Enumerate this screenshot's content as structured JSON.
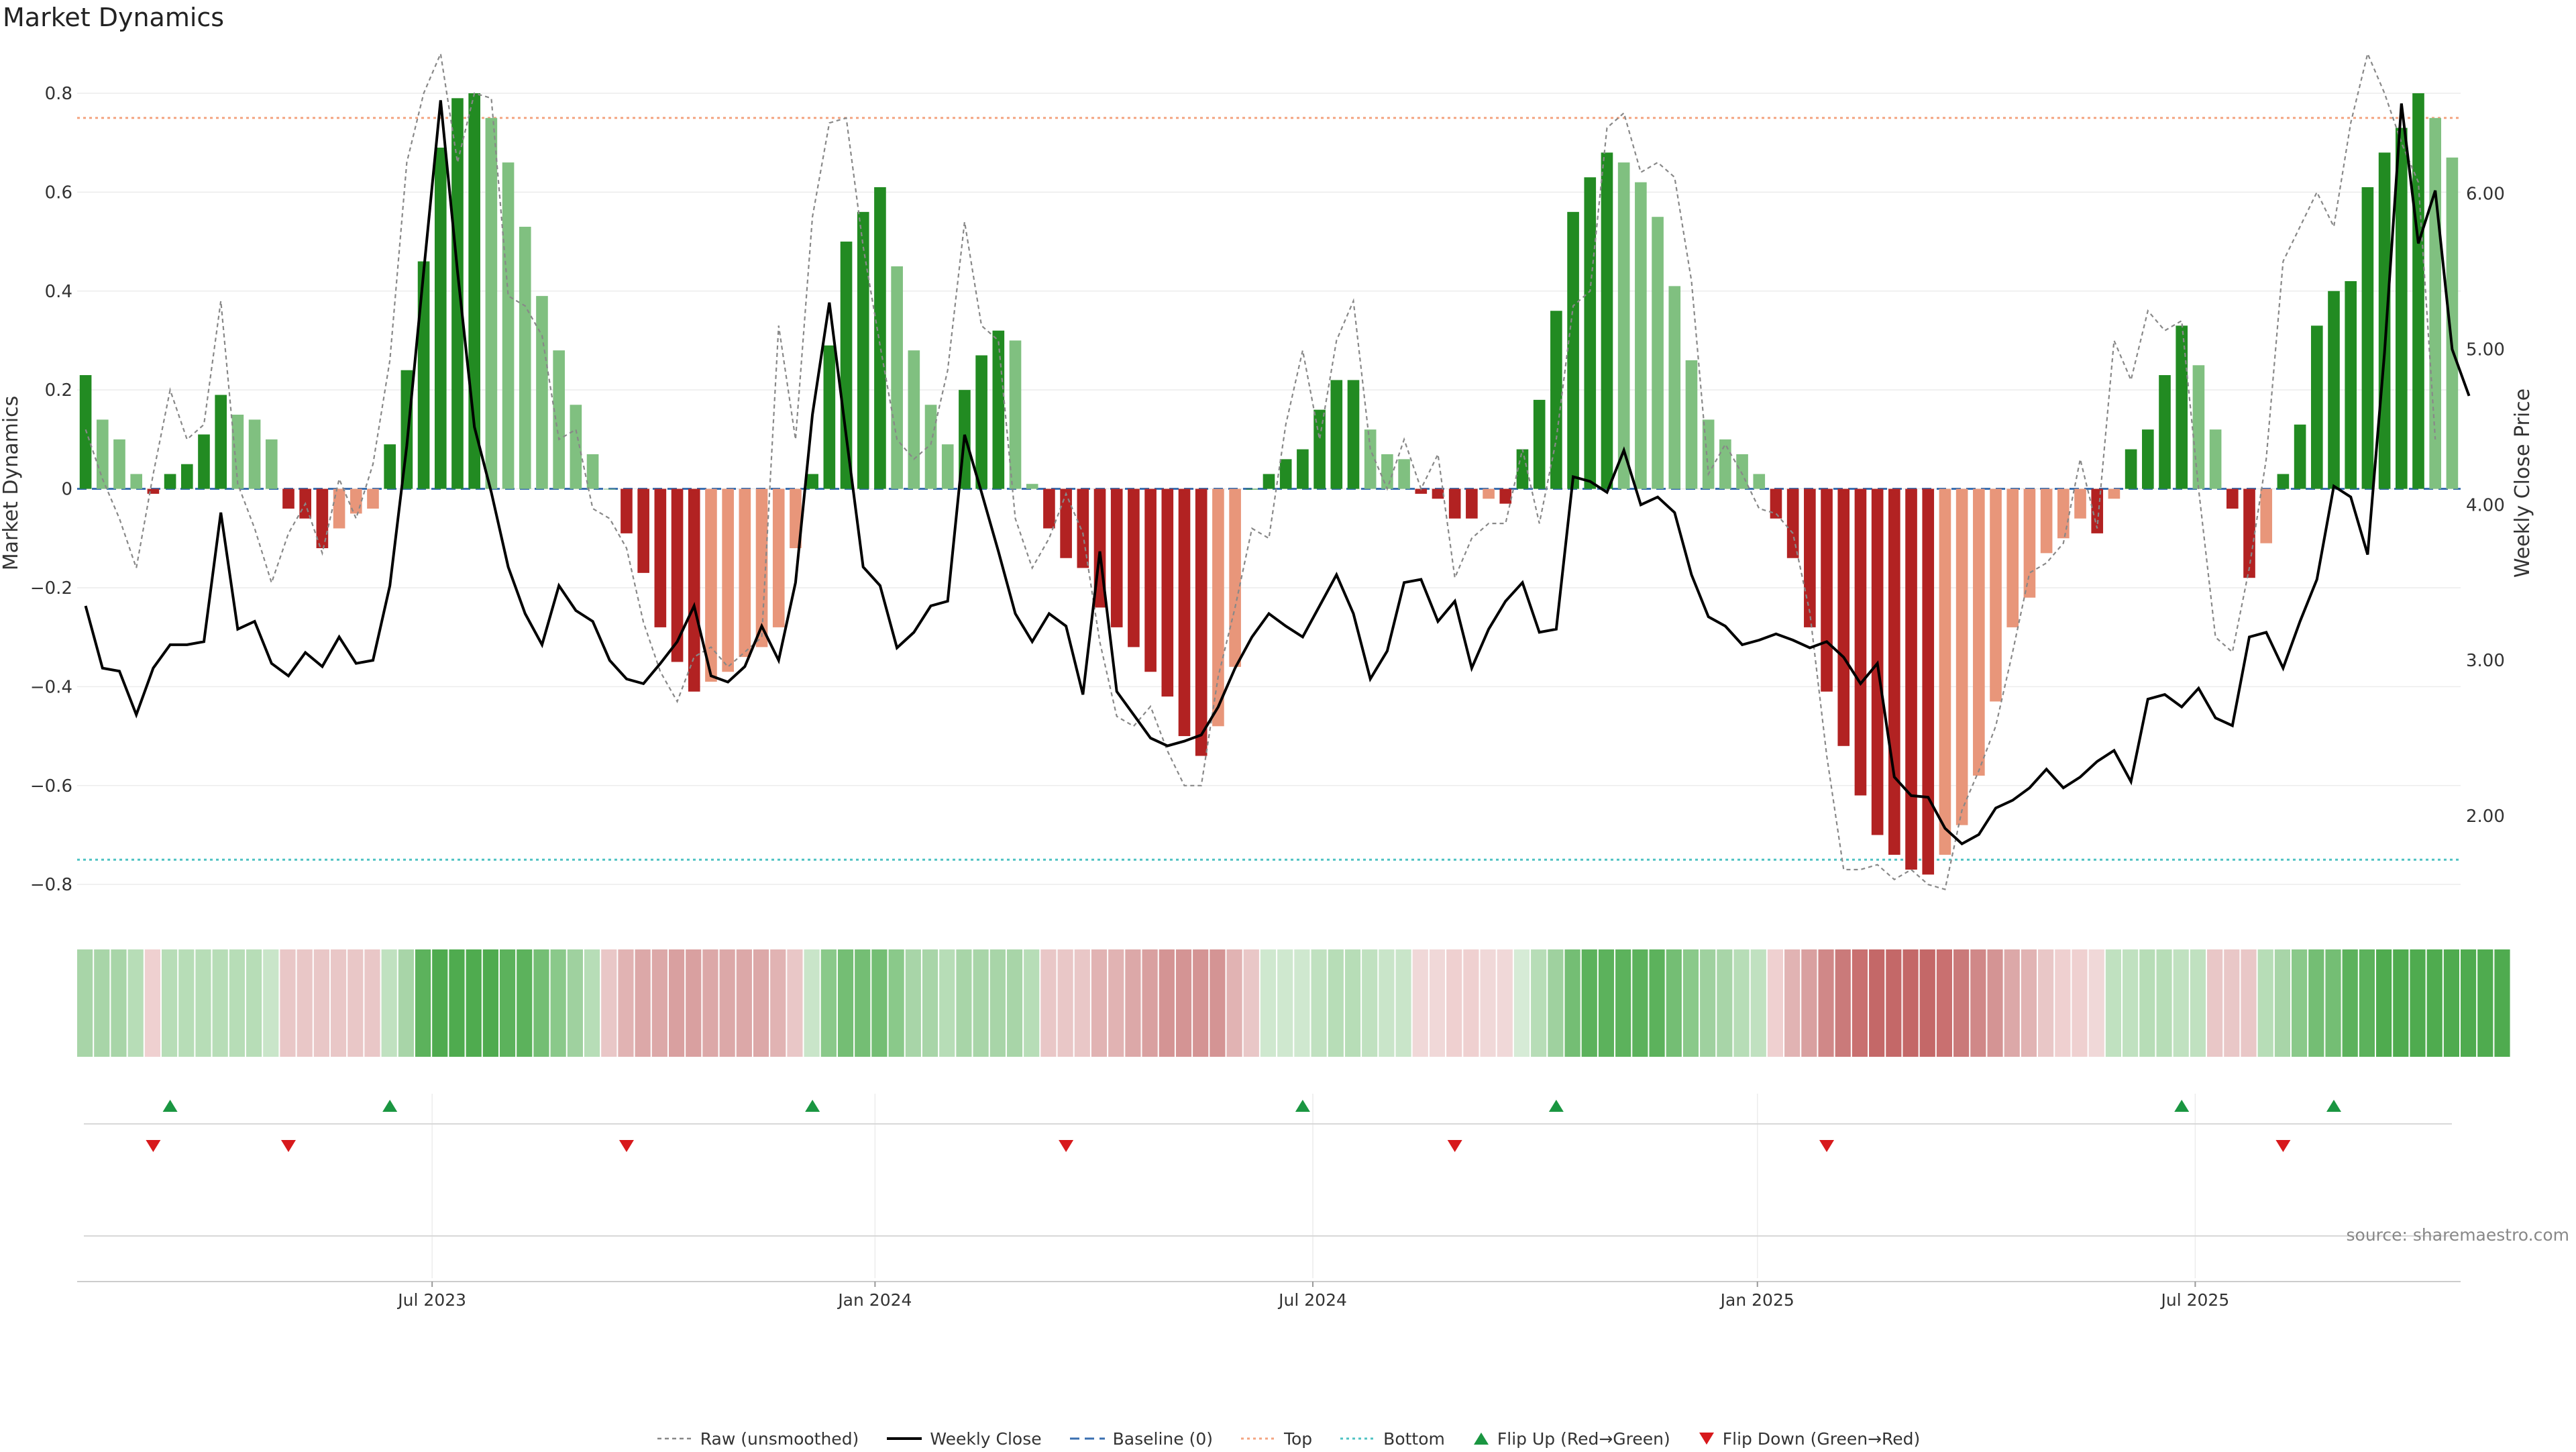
{
  "chart_data": {
    "type": "bar",
    "title": "Market Dynamics",
    "ylabel": "Market Dynamics",
    "y2label": "Weekly Close Price",
    "ylim": [
      -0.85,
      0.88
    ],
    "y2lim": [
      1.4,
      6.9
    ],
    "yticks": [
      0.8,
      0.6,
      0.4,
      0.2,
      0,
      -0.2,
      -0.4,
      -0.6,
      -0.8
    ],
    "ytick_labels": [
      "0.8",
      "0.6",
      "0.4",
      "0.2",
      "0",
      "−0.2",
      "−0.4",
      "−0.6",
      "−0.8"
    ],
    "y2ticks": [
      6.0,
      5.0,
      4.0,
      3.0,
      2.0
    ],
    "y2tick_labels": [
      "6.00",
      "5.00",
      "4.00",
      "3.00",
      "2.00"
    ],
    "x_ticks": [
      {
        "index": 20.5,
        "label": "Jul 2023"
      },
      {
        "index": 46.7,
        "label": "Jan 2024"
      },
      {
        "index": 72.6,
        "label": "Jul 2024"
      },
      {
        "index": 98.9,
        "label": "Jan 2025"
      },
      {
        "index": 124.8,
        "label": "Jul 2025"
      }
    ],
    "top_level": 0.75,
    "bottom_level": -0.75,
    "grid": true,
    "legend_position": "bottom-center",
    "colors": {
      "strong_up": "#228b22",
      "weak_up": "#80c080",
      "strong_down": "#b22222",
      "weak_down": "#e8967a",
      "close": "#000000",
      "raw": "#888888",
      "baseline": "#3a6fb0",
      "top": "#f4a582",
      "bottom": "#4fc3c3",
      "flip_up": "#1a9641",
      "flip_down": "#d7191c"
    },
    "series": [
      {
        "name": "Market Dynamics",
        "values": [
          0.23,
          0.14,
          0.1,
          0.03,
          -0.01,
          0.03,
          0.05,
          0.11,
          0.19,
          0.15,
          0.14,
          0.1,
          -0.04,
          -0.06,
          -0.12,
          -0.08,
          -0.05,
          -0.04,
          0.09,
          0.24,
          0.46,
          0.69,
          0.79,
          0.8,
          0.75,
          0.66,
          0.53,
          0.39,
          0.28,
          0.17,
          0.07,
          0,
          -0.09,
          -0.17,
          -0.28,
          -0.35,
          -0.41,
          -0.39,
          -0.37,
          -0.34,
          -0.32,
          -0.28,
          -0.12,
          0.03,
          0.29,
          0.5,
          0.56,
          0.61,
          0.45,
          0.28,
          0.17,
          0.09,
          0.2,
          0.27,
          0.32,
          0.3,
          0.01,
          -0.08,
          -0.14,
          -0.16,
          -0.24,
          -0.28,
          -0.32,
          -0.37,
          -0.42,
          -0.5,
          -0.54,
          -0.48,
          -0.36,
          0,
          0.03,
          0.06,
          0.08,
          0.16,
          0.22,
          0.22,
          0.12,
          0.07,
          0.06,
          -0.01,
          -0.02,
          -0.06,
          -0.06,
          -0.02,
          -0.03,
          0.08,
          0.18,
          0.36,
          0.56,
          0.63,
          0.68,
          0.66,
          0.62,
          0.55,
          0.41,
          0.26,
          0.14,
          0.1,
          0.07,
          0.03,
          -0.06,
          -0.14,
          -0.28,
          -0.41,
          -0.52,
          -0.62,
          -0.7,
          -0.74,
          -0.77,
          -0.78,
          -0.74,
          -0.68,
          -0.58,
          -0.43,
          -0.28,
          -0.22,
          -0.13,
          -0.1,
          -0.06,
          -0.09,
          -0.02,
          0.08,
          0.12,
          0.23,
          0.33,
          0.25,
          0.12,
          -0.04,
          -0.18,
          -0.11,
          0.03,
          0.13,
          0.33,
          0.4,
          0.42,
          0.61,
          0.68,
          0.73,
          0.8,
          0.75,
          0.67
        ]
      },
      {
        "name": "Raw (unsmoothed)",
        "values": [
          0.12,
          0.02,
          -0.06,
          -0.16,
          0.03,
          0.2,
          0.1,
          0.13,
          0.38,
          0.01,
          -0.08,
          -0.19,
          -0.09,
          -0.03,
          -0.13,
          0.02,
          -0.06,
          0.05,
          0.26,
          0.66,
          0.8,
          0.88,
          0.66,
          0.8,
          0.79,
          0.39,
          0.37,
          0.31,
          0.1,
          0.12,
          -0.04,
          -0.06,
          -0.12,
          -0.27,
          -0.37,
          -0.43,
          -0.34,
          -0.32,
          -0.36,
          -0.33,
          -0.3,
          0.33,
          0.1,
          0.55,
          0.74,
          0.75,
          0.49,
          0.29,
          0.1,
          0.06,
          0.09,
          0.24,
          0.54,
          0.33,
          0.3,
          -0.06,
          -0.16,
          -0.1,
          -0.01,
          -0.09,
          -0.31,
          -0.46,
          -0.48,
          -0.44,
          -0.53,
          -0.6,
          -0.6,
          -0.38,
          -0.24,
          -0.08,
          -0.1,
          0.13,
          0.28,
          0.1,
          0.3,
          0.38,
          0.08,
          0.0,
          0.1,
          0.0,
          0.07,
          -0.18,
          -0.1,
          -0.07,
          -0.07,
          0.08,
          -0.07,
          0.1,
          0.37,
          0.4,
          0.73,
          0.76,
          0.64,
          0.66,
          0.63,
          0.42,
          0.03,
          0.09,
          0.03,
          -0.04,
          -0.05,
          -0.09,
          -0.25,
          -0.54,
          -0.77,
          -0.77,
          -0.76,
          -0.79,
          -0.77,
          -0.8,
          -0.81,
          -0.65,
          -0.57,
          -0.48,
          -0.33,
          -0.17,
          -0.15,
          -0.11,
          0.06,
          -0.08,
          0.3,
          0.22,
          0.36,
          0.32,
          0.34,
          0.0,
          -0.3,
          -0.33,
          -0.16,
          0.06,
          0.46,
          0.53,
          0.6,
          0.53,
          0.74,
          0.88,
          0.8,
          0.7,
          0.62,
          0.1
        ]
      },
      {
        "name": "Weekly Close",
        "values": [
          3.35,
          2.95,
          2.93,
          2.65,
          2.95,
          3.1,
          3.1,
          3.12,
          3.95,
          3.2,
          3.25,
          2.98,
          2.9,
          3.05,
          2.96,
          3.15,
          2.98,
          3.0,
          3.48,
          4.38,
          5.5,
          6.6,
          5.5,
          4.5,
          4.08,
          3.6,
          3.3,
          3.1,
          3.48,
          3.32,
          3.25,
          3.0,
          2.88,
          2.85,
          2.98,
          3.12,
          3.35,
          2.9,
          2.86,
          2.96,
          3.22,
          3.0,
          3.5,
          4.58,
          5.3,
          4.44,
          3.6,
          3.48,
          3.08,
          3.18,
          3.35,
          3.38,
          4.45,
          4.08,
          3.7,
          3.3,
          3.12,
          3.3,
          3.22,
          2.78,
          3.7,
          2.8,
          2.65,
          2.5,
          2.45,
          2.48,
          2.52,
          2.7,
          2.95,
          3.15,
          3.3,
          3.22,
          3.15,
          3.35,
          3.55,
          3.3,
          2.88,
          3.06,
          3.5,
          3.52,
          3.25,
          3.38,
          2.95,
          3.2,
          3.38,
          3.5,
          3.18,
          3.2,
          4.18,
          4.15,
          4.08,
          4.35,
          4.0,
          4.05,
          3.95,
          3.55,
          3.28,
          3.22,
          3.1,
          3.13,
          3.17,
          3.13,
          3.08,
          3.12,
          3.02,
          2.85,
          2.98,
          2.25,
          2.13,
          2.12,
          1.92,
          1.82,
          1.88,
          2.05,
          2.1,
          2.18,
          2.3,
          2.18,
          2.25,
          2.35,
          2.42,
          2.22,
          2.75,
          2.78,
          2.7,
          2.82,
          2.63,
          2.58,
          3.15,
          3.18,
          2.95,
          3.25,
          3.52,
          4.12,
          4.05,
          3.68,
          4.98,
          6.58,
          5.68,
          6.02,
          5.0,
          4.7
        ]
      }
    ],
    "color_strip": [
      {
        "hex": "#a8d5a8"
      },
      {
        "hex": "#a8d5a8"
      },
      {
        "hex": "#a8d5a8"
      },
      {
        "hex": "#b7ddb7"
      },
      {
        "hex": "#efd0d0"
      },
      {
        "hex": "#b7ddb7"
      },
      {
        "hex": "#b7ddb7"
      },
      {
        "hex": "#b7ddb7"
      },
      {
        "hex": "#b7ddb7"
      },
      {
        "hex": "#b7ddb7"
      },
      {
        "hex": "#b7ddb7"
      },
      {
        "hex": "#c9e5c9"
      },
      {
        "hex": "#e9c7c7"
      },
      {
        "hex": "#e9c7c7"
      },
      {
        "hex": "#e9c7c7"
      },
      {
        "hex": "#e9c7c7"
      },
      {
        "hex": "#e9c7c7"
      },
      {
        "hex": "#e9c7c7"
      },
      {
        "hex": "#c0e1c0"
      },
      {
        "hex": "#a8d5a8"
      },
      {
        "hex": "#5cb25c"
      },
      {
        "hex": "#4fab4f"
      },
      {
        "hex": "#4fab4f"
      },
      {
        "hex": "#4fab4f"
      },
      {
        "hex": "#4fab4f"
      },
      {
        "hex": "#5cb25c"
      },
      {
        "hex": "#5cb25c"
      },
      {
        "hex": "#74be74"
      },
      {
        "hex": "#8ac98a"
      },
      {
        "hex": "#9fd19f"
      },
      {
        "hex": "#b7ddb7"
      },
      {
        "hex": "#e9c7c7"
      },
      {
        "hex": "#e1b3b3"
      },
      {
        "hex": "#dca8a8"
      },
      {
        "hex": "#dca8a8"
      },
      {
        "hex": "#d9a0a0"
      },
      {
        "hex": "#d9a0a0"
      },
      {
        "hex": "#dca8a8"
      },
      {
        "hex": "#dca8a8"
      },
      {
        "hex": "#dca8a8"
      },
      {
        "hex": "#dca8a8"
      },
      {
        "hex": "#e1b3b3"
      },
      {
        "hex": "#e9c7c7"
      },
      {
        "hex": "#c9e5c9"
      },
      {
        "hex": "#8ac98a"
      },
      {
        "hex": "#74be74"
      },
      {
        "hex": "#74be74"
      },
      {
        "hex": "#74be74"
      },
      {
        "hex": "#8ac98a"
      },
      {
        "hex": "#a8d5a8"
      },
      {
        "hex": "#a8d5a8"
      },
      {
        "hex": "#b7ddb7"
      },
      {
        "hex": "#a8d5a8"
      },
      {
        "hex": "#a8d5a8"
      },
      {
        "hex": "#a8d5a8"
      },
      {
        "hex": "#a8d5a8"
      },
      {
        "hex": "#b7ddb7"
      },
      {
        "hex": "#e9c7c7"
      },
      {
        "hex": "#e9c7c7"
      },
      {
        "hex": "#e9c7c7"
      },
      {
        "hex": "#e1b3b3"
      },
      {
        "hex": "#e1b3b3"
      },
      {
        "hex": "#dca8a8"
      },
      {
        "hex": "#d9a0a0"
      },
      {
        "hex": "#d49494"
      },
      {
        "hex": "#d49494"
      },
      {
        "hex": "#d49494"
      },
      {
        "hex": "#d49494"
      },
      {
        "hex": "#e1b3b3"
      },
      {
        "hex": "#e9c7c7"
      },
      {
        "hex": "#cfe8cf"
      },
      {
        "hex": "#cfe8cf"
      },
      {
        "hex": "#cfe8cf"
      },
      {
        "hex": "#c0e1c0"
      },
      {
        "hex": "#b7ddb7"
      },
      {
        "hex": "#b7ddb7"
      },
      {
        "hex": "#c0e1c0"
      },
      {
        "hex": "#c9e5c9"
      },
      {
        "hex": "#c9e5c9"
      },
      {
        "hex": "#f0d8d8"
      },
      {
        "hex": "#f0d8d8"
      },
      {
        "hex": "#efd0d0"
      },
      {
        "hex": "#efd0d0"
      },
      {
        "hex": "#f0d8d8"
      },
      {
        "hex": "#f0d8d8"
      },
      {
        "hex": "#d6ebd6"
      },
      {
        "hex": "#b7ddb7"
      },
      {
        "hex": "#9fd19f"
      },
      {
        "hex": "#74be74"
      },
      {
        "hex": "#5cb25c"
      },
      {
        "hex": "#5cb25c"
      },
      {
        "hex": "#5cb25c"
      },
      {
        "hex": "#5cb25c"
      },
      {
        "hex": "#5cb25c"
      },
      {
        "hex": "#74be74"
      },
      {
        "hex": "#8ac98a"
      },
      {
        "hex": "#9fd19f"
      },
      {
        "hex": "#a8d5a8"
      },
      {
        "hex": "#b7ddb7"
      },
      {
        "hex": "#c0e1c0"
      },
      {
        "hex": "#efd0d0"
      },
      {
        "hex": "#e1b3b3"
      },
      {
        "hex": "#d9a0a0"
      },
      {
        "hex": "#d08888"
      },
      {
        "hex": "#ca7a7a"
      },
      {
        "hex": "#c97070"
      },
      {
        "hex": "#c46868"
      },
      {
        "hex": "#c46868"
      },
      {
        "hex": "#c46868"
      },
      {
        "hex": "#c46868"
      },
      {
        "hex": "#c97070"
      },
      {
        "hex": "#ca7a7a"
      },
      {
        "hex": "#d08888"
      },
      {
        "hex": "#d49494"
      },
      {
        "hex": "#dca8a8"
      },
      {
        "hex": "#e1b3b3"
      },
      {
        "hex": "#e9c7c7"
      },
      {
        "hex": "#efd0d0"
      },
      {
        "hex": "#efd0d0"
      },
      {
        "hex": "#f0d8d8"
      },
      {
        "hex": "#c0e1c0"
      },
      {
        "hex": "#c0e1c0"
      },
      {
        "hex": "#b7ddb7"
      },
      {
        "hex": "#b7ddb7"
      },
      {
        "hex": "#c0e1c0"
      },
      {
        "hex": "#c0e1c0"
      },
      {
        "hex": "#e9c7c7"
      },
      {
        "hex": "#e9c7c7"
      },
      {
        "hex": "#e9c7c7"
      },
      {
        "hex": "#b7ddb7"
      },
      {
        "hex": "#a8d5a8"
      },
      {
        "hex": "#8ac98a"
      },
      {
        "hex": "#74be74"
      },
      {
        "hex": "#74be74"
      },
      {
        "hex": "#5cb25c"
      },
      {
        "hex": "#5cb25c"
      },
      {
        "hex": "#4fab4f"
      },
      {
        "hex": "#4fab4f"
      },
      {
        "hex": "#4fab4f"
      },
      {
        "hex": "#4fab4f"
      },
      {
        "hex": "#4fab4f"
      },
      {
        "hex": "#4fab4f"
      },
      {
        "hex": "#4fab4f"
      },
      {
        "hex": "#4fab4f"
      }
    ],
    "flips_up": [
      5,
      18,
      43,
      72,
      87,
      124,
      133
    ],
    "flips_down": [
      4,
      12,
      32,
      58,
      81,
      103,
      130
    ]
  },
  "legend": {
    "raw": "Raw (unsmoothed)",
    "close": "Weekly Close",
    "baseline": "Baseline (0)",
    "top": "Top",
    "bottom": "Bottom",
    "flip_up": "Flip Up (Red→Green)",
    "flip_down": "Flip Down (Green→Red)"
  },
  "source_text": "source: sharemaestro.com"
}
